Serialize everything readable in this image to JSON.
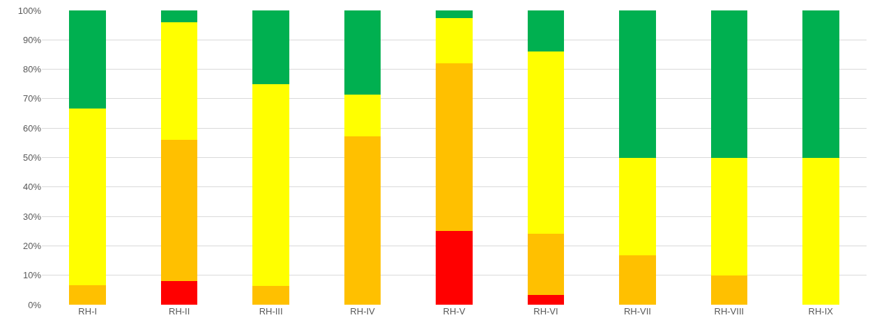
{
  "chart_data": {
    "type": "bar",
    "stacked": true,
    "categories": [
      "RH-I",
      "RH-II",
      "RH-III",
      "RH-IV",
      "RH-V",
      "RH-VI",
      "RH-VII",
      "RH-VIII",
      "RH-IX"
    ],
    "series": [
      {
        "color": "#ff0000",
        "values": [
          0,
          8,
          0,
          0,
          25,
          3.4,
          0,
          0,
          0
        ]
      },
      {
        "color": "#ffc000",
        "values": [
          6.7,
          48,
          6.3,
          57.1,
          57,
          20.6,
          16.7,
          10,
          0
        ]
      },
      {
        "color": "#ffff00",
        "values": [
          60,
          40,
          68.7,
          14.3,
          15.3,
          62,
          33.3,
          40,
          50
        ]
      },
      {
        "color": "#00b050",
        "values": [
          33.3,
          4,
          25,
          28.6,
          2.7,
          14,
          50,
          50,
          50
        ]
      }
    ],
    "ylim": [
      0,
      100
    ],
    "yticks": [
      {
        "value": 0,
        "label": "0%"
      },
      {
        "value": 10,
        "label": "10%"
      },
      {
        "value": 20,
        "label": "20%"
      },
      {
        "value": 30,
        "label": "30%"
      },
      {
        "value": 40,
        "label": "40%"
      },
      {
        "value": 50,
        "label": "50%"
      },
      {
        "value": 60,
        "label": "60%"
      },
      {
        "value": 70,
        "label": "70%"
      },
      {
        "value": 80,
        "label": "80%"
      },
      {
        "value": 90,
        "label": "90%"
      },
      {
        "value": 100,
        "label": "100%"
      }
    ],
    "grid": "y"
  }
}
